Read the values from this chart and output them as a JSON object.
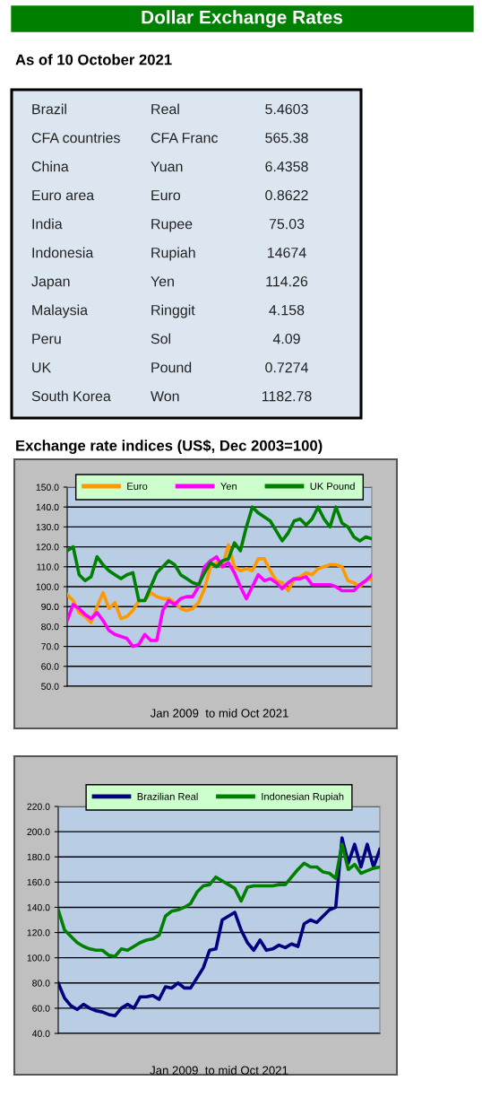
{
  "chart_data": [
    {
      "type": "other",
      "title": "Dollar Exchange Rates",
      "subtitle": "As of 10 October 2021",
      "annotations": [
        "Brazil",
        "Real",
        "5.4603",
        "CFA countries",
        "CFA Franc",
        "565.38",
        "China",
        "Yuan",
        "6.4358",
        "Euro area",
        "Euro",
        "0.8622",
        "India",
        "Rupee",
        "75.03",
        "Indonesia",
        "Rupiah",
        "14674",
        "Japan",
        "Yen",
        "114.26",
        "Malaysia",
        "Ringgit",
        "4.158",
        "Peru",
        "Sol",
        "4.09",
        "UK",
        "Pound",
        "0.7274",
        "South Korea",
        "Won",
        "1182.78"
      ]
    },
    {
      "type": "line",
      "title": "Exchange rate indices (US$, Dec 2003=100)",
      "xlabel": "Jan 2009  to mid Oct 2021",
      "categories": [
        null,
        null,
        null,
        null,
        null,
        null,
        null,
        null,
        null,
        null,
        null,
        null,
        null,
        null,
        null,
        null,
        null,
        null,
        null,
        null,
        null,
        null,
        null,
        null,
        null,
        null,
        null,
        null,
        null,
        null,
        null,
        null,
        null,
        null,
        null,
        null,
        null,
        null,
        null,
        null,
        null,
        null,
        null,
        null,
        null,
        null,
        null,
        null,
        null,
        null,
        null,
        null
      ],
      "ylim": [
        50,
        150
      ],
      "yticks": [
        {
          "value": 50,
          "label": "50.0"
        },
        {
          "value": 60,
          "label": "60.0"
        },
        {
          "value": 70,
          "label": "70.0"
        },
        {
          "value": 80,
          "label": "80.0"
        },
        {
          "value": 90,
          "label": "90.0"
        },
        {
          "value": 100,
          "label": "100.0"
        },
        {
          "value": 110,
          "label": "110.0"
        },
        {
          "value": 120,
          "label": "120.0"
        },
        {
          "value": 130,
          "label": "130.0"
        },
        {
          "value": 140,
          "label": "140.0"
        },
        {
          "value": 150,
          "label": "150.0"
        }
      ],
      "grid": "y",
      "legend": "top",
      "tick_labels": "y",
      "marker": "none",
      "line_style": "solid",
      "series": [
        {
          "name": "Euro",
          "color": "#ff9900",
          "values": [
            96,
            93,
            87,
            85,
            82,
            90,
            97,
            89,
            92,
            84,
            85,
            88,
            93,
            93,
            97,
            95,
            94,
            94,
            92,
            89,
            88,
            89,
            92,
            99,
            110,
            112,
            110,
            121,
            110,
            108,
            109,
            108,
            114,
            114,
            108,
            103,
            102,
            98,
            104,
            105,
            107,
            106,
            109,
            110,
            111,
            111,
            110,
            103,
            102,
            100,
            103,
            104
          ]
        },
        {
          "name": "Yen",
          "color": "#ff00ff",
          "values": [
            83,
            91,
            89,
            86,
            84,
            87,
            83,
            78,
            76,
            75,
            74,
            70,
            71,
            76,
            73,
            73,
            88,
            93,
            91,
            94,
            95,
            95,
            100,
            110,
            113,
            115,
            110,
            112,
            107,
            100,
            94,
            100,
            106,
            103,
            104,
            102,
            99,
            102,
            104,
            104,
            105,
            101,
            101,
            101,
            101,
            100,
            98,
            98,
            98,
            101,
            103,
            106
          ]
        },
        {
          "name": "UK Pound",
          "color": "#008000",
          "values": [
            118,
            120,
            106,
            103,
            105,
            115,
            111,
            108,
            106,
            104,
            106,
            107,
            93,
            93,
            100,
            107,
            110,
            113,
            111,
            106,
            104,
            102,
            101,
            107,
            112,
            110,
            113,
            114,
            122,
            118,
            130,
            140,
            137,
            135,
            133,
            128,
            123,
            127,
            133,
            134,
            131,
            134,
            140,
            134,
            130,
            140,
            132,
            130,
            125,
            123,
            125,
            124
          ]
        }
      ]
    },
    {
      "type": "line",
      "xlabel": "Jan 2009  to mid Oct 2021",
      "categories": [
        null,
        null,
        null,
        null,
        null,
        null,
        null,
        null,
        null,
        null,
        null,
        null,
        null,
        null,
        null,
        null,
        null,
        null,
        null,
        null,
        null,
        null,
        null,
        null,
        null,
        null,
        null,
        null,
        null,
        null,
        null,
        null,
        null,
        null,
        null,
        null,
        null,
        null,
        null,
        null,
        null,
        null,
        null,
        null,
        null,
        null,
        null,
        null,
        null,
        null,
        null,
        null
      ],
      "ylim": [
        40,
        220
      ],
      "yticks": [
        {
          "value": 40,
          "label": "40.0"
        },
        {
          "value": 60,
          "label": "60.0"
        },
        {
          "value": 80,
          "label": "80.0"
        },
        {
          "value": 100,
          "label": "100.0"
        },
        {
          "value": 120,
          "label": "120.0"
        },
        {
          "value": 140,
          "label": "140.0"
        },
        {
          "value": 160,
          "label": "160.0"
        },
        {
          "value": 180,
          "label": "180.0"
        },
        {
          "value": 200,
          "label": "200.0"
        },
        {
          "value": 220,
          "label": "220.0"
        }
      ],
      "grid": "y",
      "legend": "top",
      "tick_labels": "y",
      "marker": "none",
      "line_style": "solid",
      "series": [
        {
          "name": "Brazilian Real",
          "color": "#000080",
          "values": [
            80,
            68,
            62,
            59,
            63,
            60,
            58,
            57,
            55,
            54,
            60,
            63,
            60,
            69,
            69,
            70,
            67,
            77,
            76,
            80,
            76,
            76,
            84,
            92,
            106,
            107,
            130,
            133,
            136,
            122,
            112,
            106,
            114,
            106,
            107,
            110,
            108,
            111,
            109,
            127,
            130,
            128,
            133,
            138,
            140,
            195,
            175,
            190,
            172,
            190,
            172,
            186
          ]
        },
        {
          "name": "Indonesian Rupiah",
          "color": "#008000",
          "values": [
            138,
            122,
            117,
            112,
            109,
            107,
            106,
            106,
            102,
            101,
            107,
            106,
            109,
            112,
            114,
            115,
            118,
            133,
            137,
            138,
            140,
            143,
            152,
            157,
            158,
            164,
            161,
            158,
            155,
            145,
            156,
            157,
            157,
            157,
            157,
            158,
            158,
            164,
            170,
            175,
            172,
            172,
            168,
            167,
            163,
            190,
            170,
            174,
            167,
            169,
            171,
            172
          ]
        }
      ]
    }
  ]
}
